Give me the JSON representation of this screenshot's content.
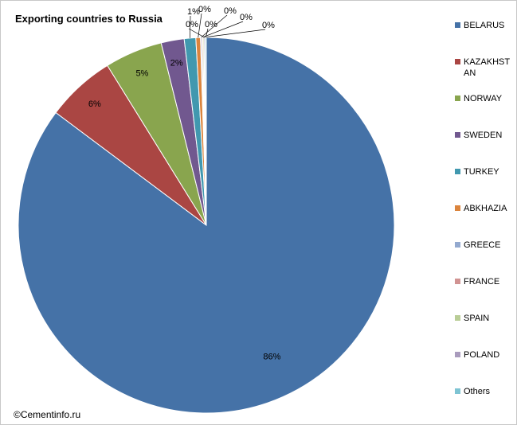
{
  "chart_data": {
    "type": "pie",
    "title": "Exporting countries to Russia",
    "categories": [
      "BELARUS",
      "KAZAKHSTAN",
      "NORWAY",
      "SWEDEN",
      "TURKEY",
      "ABKHAZIA",
      "GREECE",
      "FRANCE",
      "SPAIN",
      "POLAND",
      "Others"
    ],
    "values": [
      86,
      6,
      5,
      2,
      1,
      0.4,
      0.1,
      0.1,
      0.1,
      0.1,
      0.1
    ],
    "data_labels": [
      "86%",
      "6%",
      "5%",
      "2%",
      "1%",
      "0%",
      "0%",
      "0%",
      "0%",
      "0%",
      "0%"
    ],
    "colors": [
      "#4572A7",
      "#AA4643",
      "#89A54E",
      "#71588F",
      "#4198AF",
      "#DB843D",
      "#93A9CF",
      "#D19392",
      "#B9CD96",
      "#A99BBD",
      "#7EC4D3"
    ],
    "legend_position": "right",
    "start": "12 o'clock",
    "direction": "clockwise"
  },
  "footer": {
    "copyright": "©Cementinfo.ru"
  }
}
